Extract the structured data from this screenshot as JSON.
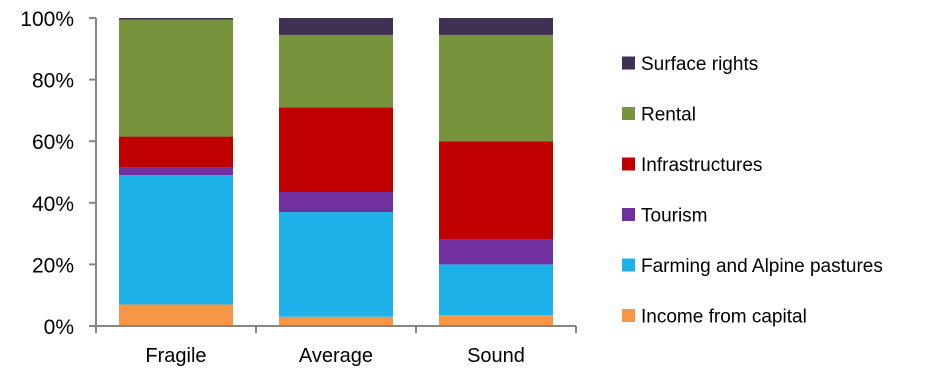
{
  "chart_data": {
    "type": "bar",
    "stacked": true,
    "percent_stacked": true,
    "categories": [
      "Fragile",
      "Average",
      "Sound"
    ],
    "series": [
      {
        "name": "Income from capital",
        "color": "#F79646",
        "values": [
          7,
          3,
          3.5
        ]
      },
      {
        "name": "Farming and Alpine pastures",
        "color": "#1FB2EA",
        "values": [
          42,
          34,
          16.5
        ]
      },
      {
        "name": "Tourism",
        "color": "#7030A0",
        "values": [
          2.5,
          6.5,
          8
        ]
      },
      {
        "name": "Infrastructures",
        "color": "#C00000",
        "values": [
          10,
          27.5,
          32
        ]
      },
      {
        "name": "Rental",
        "color": "#77933C",
        "values": [
          38,
          23.5,
          34.5
        ]
      },
      {
        "name": "Surface rights",
        "color": "#403152",
        "values": [
          0.5,
          5.5,
          5.5
        ]
      }
    ],
    "ylim": [
      0,
      100
    ],
    "yticks": [
      "0%",
      "20%",
      "40%",
      "60%",
      "80%",
      "100%"
    ],
    "grid": false,
    "legend_position": "right",
    "legend_order": [
      "Surface rights",
      "Rental",
      "Infrastructures",
      "Tourism",
      "Farming and Alpine pastures",
      "Income from capital"
    ]
  }
}
